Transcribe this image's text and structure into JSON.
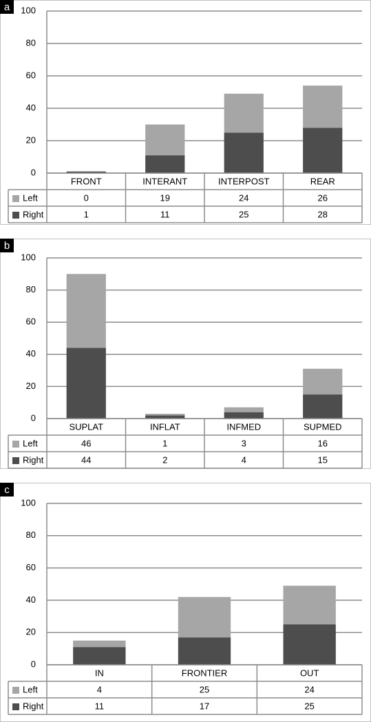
{
  "colors": {
    "left": "#a6a6a6",
    "right": "#4d4d4d",
    "grid": "#8c8c8c",
    "table_border": "#8c8c8c",
    "frame": "#bfbfbf",
    "panel_label_bg": "#000000",
    "panel_label_fg": "#ffffff",
    "text": "#000000"
  },
  "chart_data": [
    {
      "type": "bar",
      "stacked": true,
      "panel_label": "a",
      "categories": [
        "FRONT",
        "INTERANT",
        "INTERPOST",
        "REAR"
      ],
      "series": [
        {
          "name": "Left",
          "values": [
            0,
            19,
            24,
            26
          ],
          "labels": [
            "0",
            "19",
            "24",
            "26"
          ]
        },
        {
          "name": "Right",
          "values": [
            1,
            11,
            25,
            28
          ],
          "labels": [
            "1",
            "11",
            "25",
            "28"
          ]
        }
      ],
      "ylim": [
        0,
        100
      ],
      "yticks": [
        "0",
        "20",
        "40",
        "60",
        "80",
        "100"
      ],
      "grid": true,
      "legend": "data-table"
    },
    {
      "type": "bar",
      "stacked": true,
      "panel_label": "b",
      "categories": [
        "SUPLAT",
        "INFLAT",
        "INFMED",
        "SUPMED"
      ],
      "series": [
        {
          "name": "Left",
          "values": [
            46,
            1,
            3,
            16
          ],
          "labels": [
            "46",
            "1",
            "3",
            "16"
          ]
        },
        {
          "name": "Right",
          "values": [
            44,
            2,
            4,
            15
          ],
          "labels": [
            "44",
            "2",
            "4",
            "15"
          ]
        }
      ],
      "ylim": [
        0,
        100
      ],
      "yticks": [
        "0",
        "20",
        "40",
        "60",
        "80",
        "100"
      ],
      "grid": true,
      "legend": "data-table"
    },
    {
      "type": "bar",
      "stacked": true,
      "panel_label": "c",
      "categories": [
        "IN",
        "FRONTIER",
        "OUT"
      ],
      "series": [
        {
          "name": "Left",
          "values": [
            4,
            25,
            24
          ],
          "labels": [
            "4",
            "25",
            "24"
          ]
        },
        {
          "name": "Right",
          "values": [
            11,
            17,
            25
          ],
          "labels": [
            "11",
            "17",
            "25"
          ]
        }
      ],
      "ylim": [
        0,
        100
      ],
      "yticks": [
        "0",
        "20",
        "40",
        "60",
        "80",
        "100"
      ],
      "grid": true,
      "legend": "data-table"
    }
  ]
}
